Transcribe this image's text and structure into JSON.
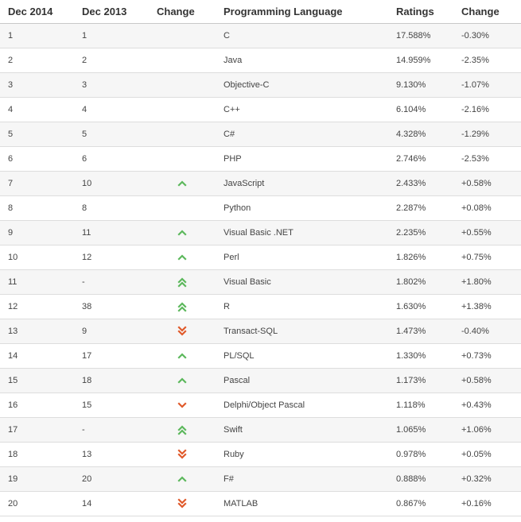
{
  "columns": [
    "Dec 2014",
    "Dec 2013",
    "Change",
    "Programming Language",
    "Ratings",
    "Change"
  ],
  "colors": {
    "up": "#5cb85c",
    "down": "#e05a2b"
  },
  "rows": [
    {
      "dec2014": "1",
      "dec2013": "1",
      "trend": "none",
      "language": "C",
      "rating": "17.588%",
      "change": "-0.30%"
    },
    {
      "dec2014": "2",
      "dec2013": "2",
      "trend": "none",
      "language": "Java",
      "rating": "14.959%",
      "change": "-2.35%"
    },
    {
      "dec2014": "3",
      "dec2013": "3",
      "trend": "none",
      "language": "Objective-C",
      "rating": "9.130%",
      "change": "-1.07%"
    },
    {
      "dec2014": "4",
      "dec2013": "4",
      "trend": "none",
      "language": "C++",
      "rating": "6.104%",
      "change": "-2.16%"
    },
    {
      "dec2014": "5",
      "dec2013": "5",
      "trend": "none",
      "language": "C#",
      "rating": "4.328%",
      "change": "-1.29%"
    },
    {
      "dec2014": "6",
      "dec2013": "6",
      "trend": "none",
      "language": "PHP",
      "rating": "2.746%",
      "change": "-2.53%"
    },
    {
      "dec2014": "7",
      "dec2013": "10",
      "trend": "up",
      "language": "JavaScript",
      "rating": "2.433%",
      "change": "+0.58%"
    },
    {
      "dec2014": "8",
      "dec2013": "8",
      "trend": "none",
      "language": "Python",
      "rating": "2.287%",
      "change": "+0.08%"
    },
    {
      "dec2014": "9",
      "dec2013": "11",
      "trend": "up",
      "language": "Visual Basic .NET",
      "rating": "2.235%",
      "change": "+0.55%"
    },
    {
      "dec2014": "10",
      "dec2013": "12",
      "trend": "up",
      "language": "Perl",
      "rating": "1.826%",
      "change": "+0.75%"
    },
    {
      "dec2014": "11",
      "dec2013": "-",
      "trend": "upup",
      "language": "Visual Basic",
      "rating": "1.802%",
      "change": "+1.80%"
    },
    {
      "dec2014": "12",
      "dec2013": "38",
      "trend": "upup",
      "language": "R",
      "rating": "1.630%",
      "change": "+1.38%"
    },
    {
      "dec2014": "13",
      "dec2013": "9",
      "trend": "downdown",
      "language": "Transact-SQL",
      "rating": "1.473%",
      "change": "-0.40%"
    },
    {
      "dec2014": "14",
      "dec2013": "17",
      "trend": "up",
      "language": "PL/SQL",
      "rating": "1.330%",
      "change": "+0.73%"
    },
    {
      "dec2014": "15",
      "dec2013": "18",
      "trend": "up",
      "language": "Pascal",
      "rating": "1.173%",
      "change": "+0.58%"
    },
    {
      "dec2014": "16",
      "dec2013": "15",
      "trend": "down",
      "language": "Delphi/Object Pascal",
      "rating": "1.118%",
      "change": "+0.43%"
    },
    {
      "dec2014": "17",
      "dec2013": "-",
      "trend": "upup",
      "language": "Swift",
      "rating": "1.065%",
      "change": "+1.06%"
    },
    {
      "dec2014": "18",
      "dec2013": "13",
      "trend": "downdown",
      "language": "Ruby",
      "rating": "0.978%",
      "change": "+0.05%"
    },
    {
      "dec2014": "19",
      "dec2013": "20",
      "trend": "up",
      "language": "F#",
      "rating": "0.888%",
      "change": "+0.32%"
    },
    {
      "dec2014": "20",
      "dec2013": "14",
      "trend": "downdown",
      "language": "MATLAB",
      "rating": "0.867%",
      "change": "+0.16%"
    }
  ]
}
